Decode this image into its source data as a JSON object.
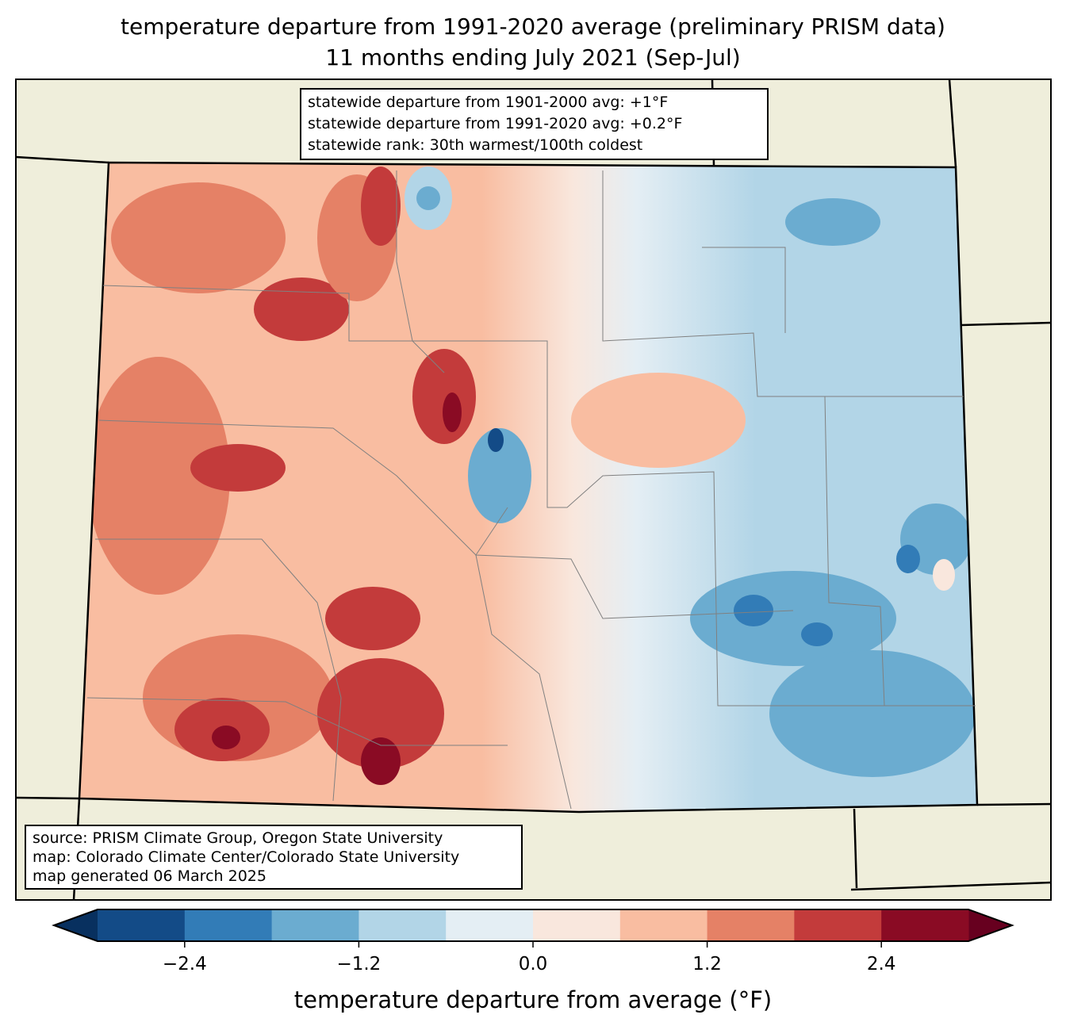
{
  "title_line1": "temperature departure from 1991-2020 average (preliminary PRISM data)",
  "title_line2": "11 months ending July 2021 (Sep-Jul)",
  "stats": [
    "statewide departure from 1901-2000 avg: +1°F",
    "statewide departure from 1991-2020 avg: +0.2°F",
    "statewide rank: 30th warmest/100th coldest"
  ],
  "credits": [
    "source: PRISM Climate Group, Oregon State University",
    "map: Colorado Climate Center/Colorado State University",
    "map generated 06 March 2025"
  ],
  "colorbar": {
    "title": "temperature departure from average (°F)",
    "bounds": [
      -3.0,
      -2.4,
      -1.8,
      -1.2,
      -0.6,
      0.0,
      0.6,
      1.2,
      1.8,
      2.4,
      3.0
    ],
    "colors": [
      "#134b87",
      "#327cb7",
      "#6bacd0",
      "#b2d5e7",
      "#e4eef4",
      "#f9e7dd",
      "#f9bda1",
      "#e58166",
      "#c33b3b",
      "#8a0b24"
    ],
    "under_color": "#08305f",
    "over_color": "#67001f",
    "ticks": [
      "−2.4",
      "−1.2",
      "0.0",
      "1.2",
      "2.4"
    ],
    "tick_values": [
      -2.4,
      -1.2,
      0.0,
      1.2,
      2.4
    ]
  },
  "colors": {
    "land": "#efeedb",
    "border": "#000000",
    "county": "#808080"
  }
}
